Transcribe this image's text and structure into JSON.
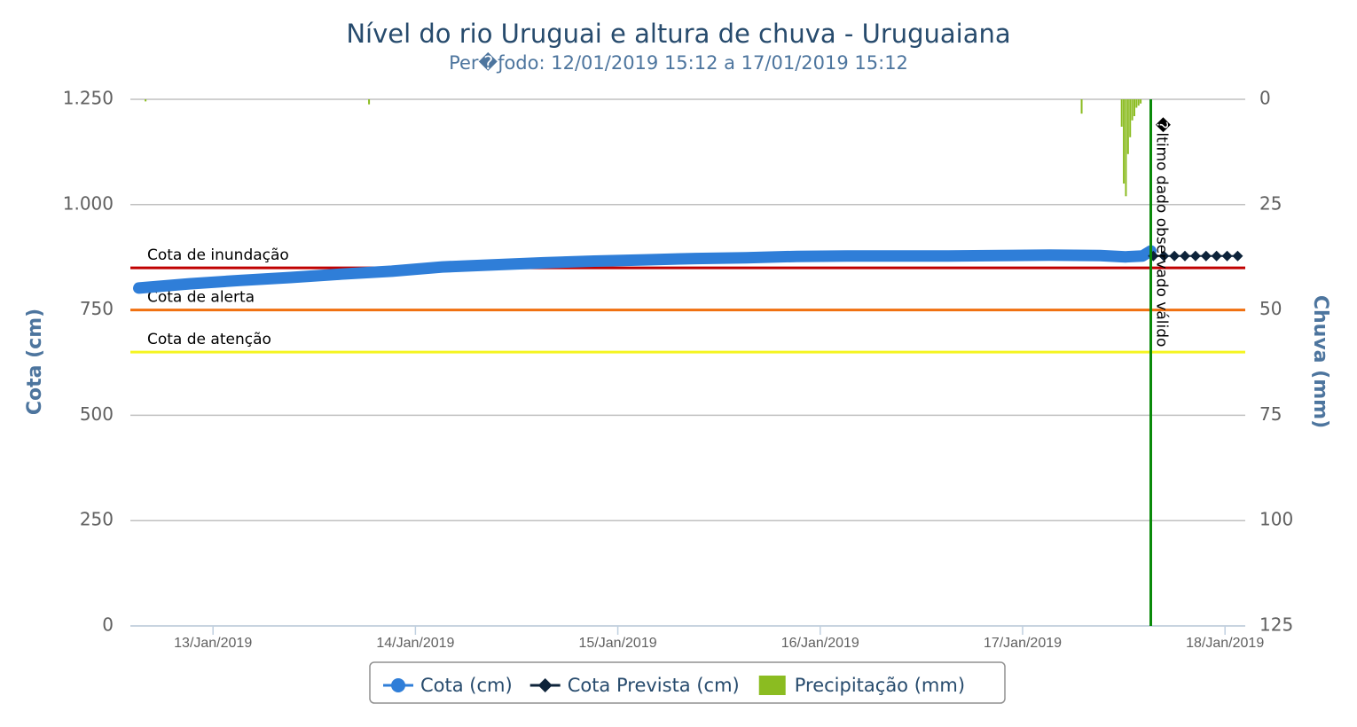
{
  "chart_data": {
    "type": "line",
    "title": "Nível do rio Uruguai e altura de chuva - Uruguaiana",
    "subtitle": "Per�ƒodo: 12/01/2019 15:12 a 17/01/2019 15:12",
    "y_label": "Cota (cm)",
    "y2_label": "Chuva (mm)",
    "xlim": [
      "2019-01-12T14:12",
      "2019-01-18T02:24"
    ],
    "xticks": [
      {
        "value": "2019-01-13T00:00",
        "label": "13/Jan/2019"
      },
      {
        "value": "2019-01-14T00:00",
        "label": "14/Jan/2019"
      },
      {
        "value": "2019-01-15T00:00",
        "label": "15/Jan/2019"
      },
      {
        "value": "2019-01-16T00:00",
        "label": "16/Jan/2019"
      },
      {
        "value": "2019-01-17T00:00",
        "label": "17/Jan/2019"
      },
      {
        "value": "2019-01-18T00:00",
        "label": "18/Jan/2019"
      }
    ],
    "ylim": [
      0,
      1250
    ],
    "yticks": [
      0,
      {
        "value": 250,
        "label": "250"
      },
      500,
      750,
      {
        "value": 1000,
        "label": "1.000"
      },
      {
        "value": 1250,
        "label": "1.250"
      }
    ],
    "y2lim": [
      0,
      125
    ],
    "y2ticks": [
      0,
      25,
      50,
      75,
      100,
      125
    ],
    "y2_reversed": true,
    "grid": true,
    "series": [
      {
        "name": "Cota (cm)",
        "color": "#2f7ed8",
        "kind": "line",
        "x": [
          "2019-01-12T15:12",
          "2019-01-12T21:12",
          "2019-01-13T03:12",
          "2019-01-13T09:12",
          "2019-01-13T15:12",
          "2019-01-13T21:12",
          "2019-01-14T03:12",
          "2019-01-14T09:12",
          "2019-01-14T15:12",
          "2019-01-14T21:12",
          "2019-01-15T03:12",
          "2019-01-15T09:12",
          "2019-01-15T15:12",
          "2019-01-15T21:12",
          "2019-01-16T03:12",
          "2019-01-16T09:12",
          "2019-01-16T15:12",
          "2019-01-16T21:12",
          "2019-01-17T03:12",
          "2019-01-17T09:12",
          "2019-01-17T12:12",
          "2019-01-17T14:12",
          "2019-01-17T15:12"
        ],
        "values": [
          802,
          812,
          820,
          827,
          835,
          842,
          852,
          857,
          862,
          866,
          869,
          872,
          874,
          877,
          878,
          878,
          878,
          879,
          880,
          879,
          876,
          878,
          890
        ]
      },
      {
        "name": "Cota Prevista (cm)",
        "color": "#0d233a",
        "kind": "diamond",
        "x": [
          "2019-01-17T15:30",
          "2019-01-17T16:45",
          "2019-01-17T18:00",
          "2019-01-17T19:15",
          "2019-01-17T20:30",
          "2019-01-17T21:45",
          "2019-01-17T23:00",
          "2019-01-18T00:15",
          "2019-01-18T01:30"
        ],
        "values": [
          878,
          878,
          878,
          878,
          878,
          878,
          878,
          878,
          878
        ]
      },
      {
        "name": "Precipitação (mm)",
        "color": "#8bbc21",
        "kind": "column",
        "axis": "y2",
        "x": [
          "2019-01-12T16:00",
          "2019-01-13T18:30",
          "2019-01-17T07:00",
          "2019-01-17T11:45",
          "2019-01-17T12:00",
          "2019-01-17T12:15",
          "2019-01-17T12:30",
          "2019-01-17T12:45",
          "2019-01-17T13:00",
          "2019-01-17T13:15",
          "2019-01-17T13:30",
          "2019-01-17T13:45",
          "2019-01-17T14:00"
        ],
        "values": [
          0.5,
          1.2,
          3.4,
          6.5,
          20,
          23,
          13,
          9,
          5,
          4,
          2,
          1.5,
          1
        ]
      }
    ],
    "plot_lines": [
      {
        "label": "Cota de inundação",
        "value": 850,
        "color": "#c00000"
      },
      {
        "label": "Cota de alerta",
        "value": 750,
        "color": "#f07010"
      },
      {
        "label": "Cota de atenção",
        "value": 650,
        "color": "#f5f520"
      }
    ],
    "vertical_line": {
      "label": "�ltimo dado observado válido",
      "x": "2019-01-17T15:12",
      "color": "#0a8a0a"
    },
    "legend": "bottom"
  }
}
